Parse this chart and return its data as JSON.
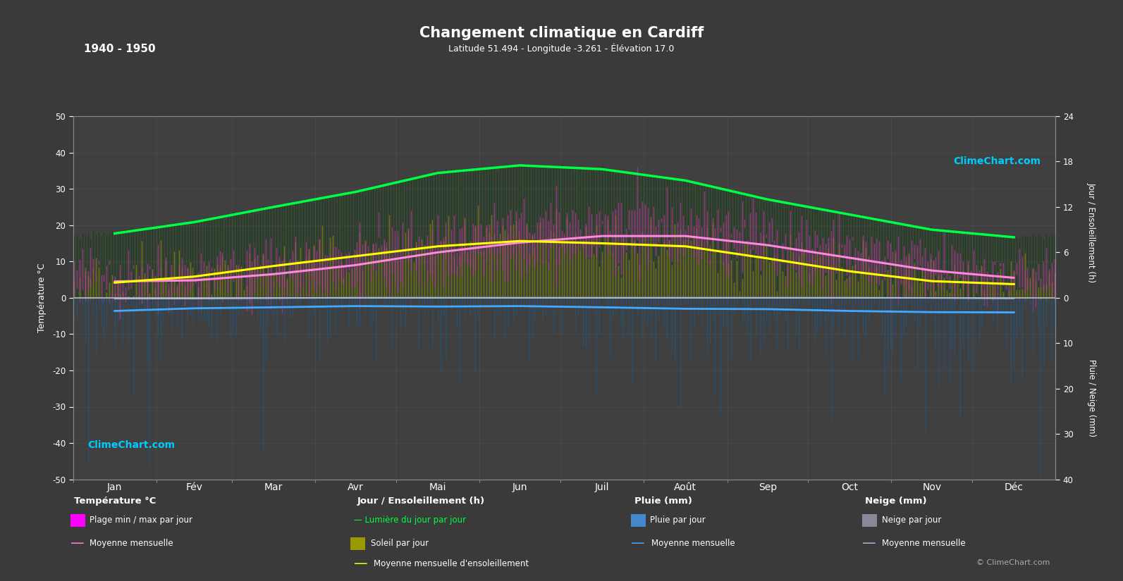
{
  "title": "Changement climatique en Cardiff",
  "subtitle": "Latitude 51.494 - Longitude -3.261 - Élévation 17.0",
  "period": "1940 - 1950",
  "background_color": "#3a3a3a",
  "plot_bg_color": "#404040",
  "grid_color": "#555555",
  "text_color": "#ffffff",
  "months": [
    "Jan",
    "Fév",
    "Mar",
    "Avr",
    "Mai",
    "Jun",
    "Juil",
    "Août",
    "Sep",
    "Oct",
    "Nov",
    "Déc"
  ],
  "temp_ylim": [
    -50,
    50
  ],
  "sun_scale": 2.083,
  "rain_scale": 1.25,
  "temp_mean_monthly": [
    4.5,
    4.8,
    6.5,
    9.0,
    12.5,
    15.2,
    17.0,
    17.0,
    14.5,
    11.0,
    7.5,
    5.5
  ],
  "temp_max_monthly": [
    8.0,
    8.5,
    11.0,
    14.0,
    17.5,
    20.5,
    22.5,
    22.5,
    19.5,
    15.0,
    11.0,
    8.5
  ],
  "temp_min_monthly": [
    1.5,
    1.5,
    3.0,
    5.0,
    8.0,
    11.0,
    13.0,
    13.0,
    10.0,
    7.0,
    4.0,
    2.5
  ],
  "sunshine_mean_monthly": [
    2.0,
    2.8,
    4.2,
    5.5,
    6.8,
    7.5,
    7.2,
    6.8,
    5.2,
    3.5,
    2.2,
    1.8
  ],
  "daylight_monthly": [
    8.5,
    10.0,
    12.0,
    14.0,
    16.5,
    17.5,
    17.0,
    15.5,
    13.0,
    11.0,
    9.0,
    8.0
  ],
  "rain_monthly_mm": [
    90,
    65,
    65,
    55,
    60,
    55,
    65,
    75,
    75,
    90,
    95,
    100
  ],
  "snow_monthly_mm": [
    5,
    5,
    2,
    0,
    0,
    0,
    0,
    0,
    0,
    0,
    1,
    4
  ],
  "days_per_month": [
    31,
    28,
    31,
    30,
    31,
    30,
    31,
    31,
    30,
    31,
    30,
    31
  ],
  "temp_bar_color": "#cc44aa",
  "temp_bar_alpha": 0.65,
  "daylight_color": "#006600",
  "daylight_alpha": 0.5,
  "sunshine_color": "#999900",
  "sunshine_alpha": 0.7,
  "rain_color": "#1a4d7a",
  "rain_alpha": 0.6,
  "snow_color": "#444466",
  "snow_alpha": 0.5,
  "temp_mean_color": "#ff88dd",
  "temp_mean_lw": 2.2,
  "sunshine_mean_color": "#ffff00",
  "sunshine_mean_lw": 2.2,
  "daylight_mean_color": "#00ff44",
  "daylight_mean_lw": 2.5,
  "rain_mean_color": "#44aaff",
  "rain_mean_lw": 2.0,
  "snow_mean_color": "#aabbdd",
  "snow_mean_lw": 1.5,
  "right_sun_ticks": [
    0,
    6,
    12,
    18,
    24
  ],
  "right_rain_ticks": [
    0,
    10,
    20,
    30,
    40
  ],
  "legend_temp_title": "Température °C",
  "legend_sun_title": "Jour / Ensoleillement (h)",
  "legend_rain_title": "Pluie (mm)",
  "legend_snow_title": "Neige (mm)"
}
